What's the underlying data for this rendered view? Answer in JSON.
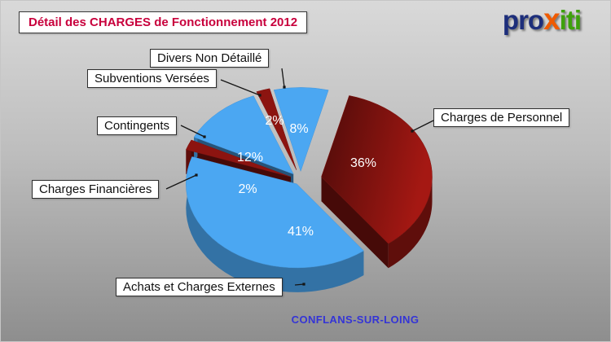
{
  "header": {
    "title": "Détail des CHARGES de Fonctionnement 2012",
    "logo": {
      "part1": "pro",
      "part2": "x",
      "part3": "iti"
    }
  },
  "footer": {
    "text": "CONFLANS-SUR-LOING"
  },
  "chart_data": {
    "type": "pie",
    "style": "3d-exploded",
    "title": "Détail des CHARGES de Fonctionnement 2012",
    "unit": "%",
    "location": "CONFLANS-SUR-LOING",
    "legend_position": "external-callouts",
    "colors": {
      "blue_slice": "#4ba7f2",
      "dark_red_slice": "#8c1410",
      "title_text": "#c8003c",
      "footer_text": "#3434d6"
    },
    "slices": [
      {
        "label": "Divers Non Détaillé",
        "value": 8,
        "color": "#4ba7f2"
      },
      {
        "label": "Charges de Personnel",
        "value": 36,
        "color": "#8c1410"
      },
      {
        "label": "Achats et Charges Externes",
        "value": 41,
        "color": "#4ba7f2"
      },
      {
        "label": "Charges Financières",
        "value": 2,
        "color": "#8c1410"
      },
      {
        "label": "Contingents",
        "value": 12,
        "color": "#4ba7f2"
      },
      {
        "label": "Subventions Versées",
        "value": 2,
        "color": "#8c1410"
      }
    ]
  }
}
